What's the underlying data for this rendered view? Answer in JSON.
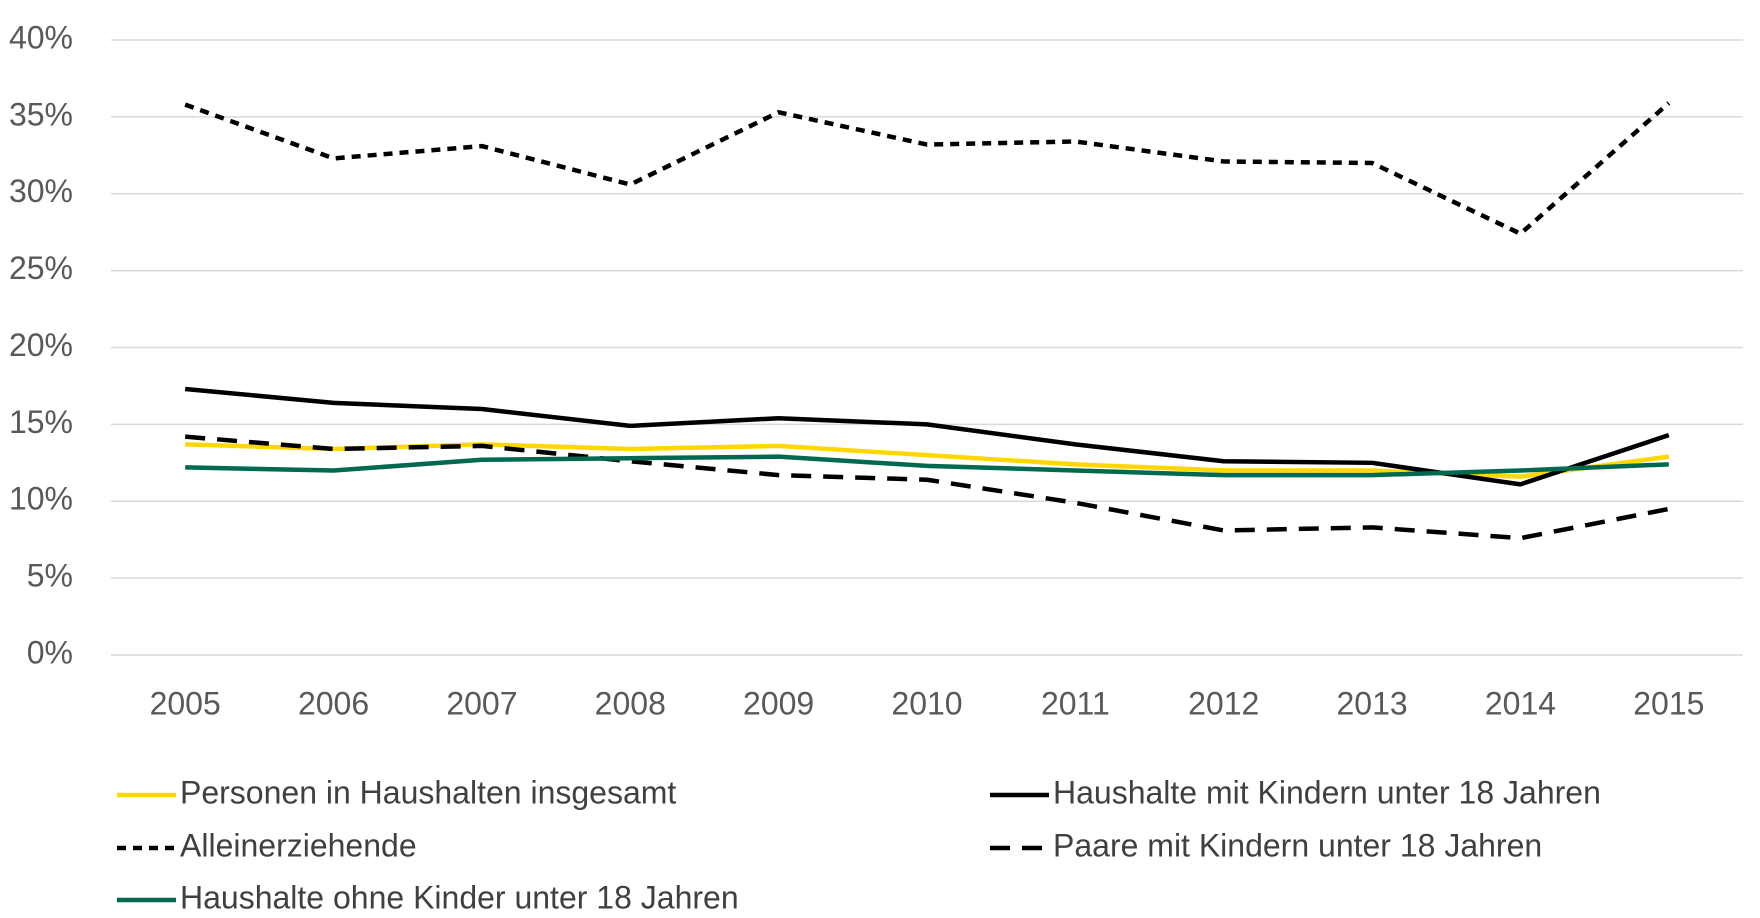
{
  "chart_data": {
    "type": "line",
    "categories": [
      "2005",
      "2006",
      "2007",
      "2008",
      "2009",
      "2010",
      "2011",
      "2012",
      "2013",
      "2014",
      "2015"
    ],
    "ylim": [
      0,
      40
    ],
    "yticks": [
      {
        "value": 0,
        "label": "0%"
      },
      {
        "value": 5,
        "label": "5%"
      },
      {
        "value": 10,
        "label": "10%"
      },
      {
        "value": 15,
        "label": "15%"
      },
      {
        "value": 20,
        "label": "20%"
      },
      {
        "value": 25,
        "label": "25%"
      },
      {
        "value": 30,
        "label": "30%"
      },
      {
        "value": 35,
        "label": "35%"
      },
      {
        "value": 40,
        "label": "40%"
      }
    ],
    "grid": true,
    "legend": "bottom",
    "series": [
      {
        "name": "Personen in Haushalten insgesamt",
        "color": "#ffd700",
        "line_style": "solid",
        "values": [
          13.7,
          13.4,
          13.7,
          13.4,
          13.6,
          13.0,
          12.4,
          12.0,
          12.0,
          11.6,
          12.9
        ]
      },
      {
        "name": "Haushalte mit Kindern unter 18 Jahren",
        "color": "#000000",
        "line_style": "solid",
        "values": [
          17.3,
          16.4,
          16.0,
          14.9,
          15.4,
          15.0,
          13.7,
          12.6,
          12.5,
          11.1,
          14.3
        ]
      },
      {
        "name": "Alleinerziehende",
        "color": "#000000",
        "line_style": "dotted",
        "values": [
          35.8,
          32.3,
          33.1,
          30.6,
          35.3,
          33.2,
          33.4,
          32.1,
          32.0,
          27.4,
          35.9
        ]
      },
      {
        "name": "Paare mit Kindern unter 18 Jahren",
        "color": "#000000",
        "line_style": "dashed",
        "values": [
          14.2,
          13.4,
          13.6,
          12.6,
          11.7,
          11.4,
          9.9,
          8.1,
          8.3,
          7.6,
          9.5
        ]
      },
      {
        "name": "Haushalte ohne Kinder unter 18 Jahren",
        "color": "#00694f",
        "line_style": "solid",
        "values": [
          12.2,
          12.0,
          12.7,
          12.8,
          12.9,
          12.3,
          12.0,
          11.7,
          11.7,
          12.0,
          12.4
        ]
      }
    ]
  }
}
